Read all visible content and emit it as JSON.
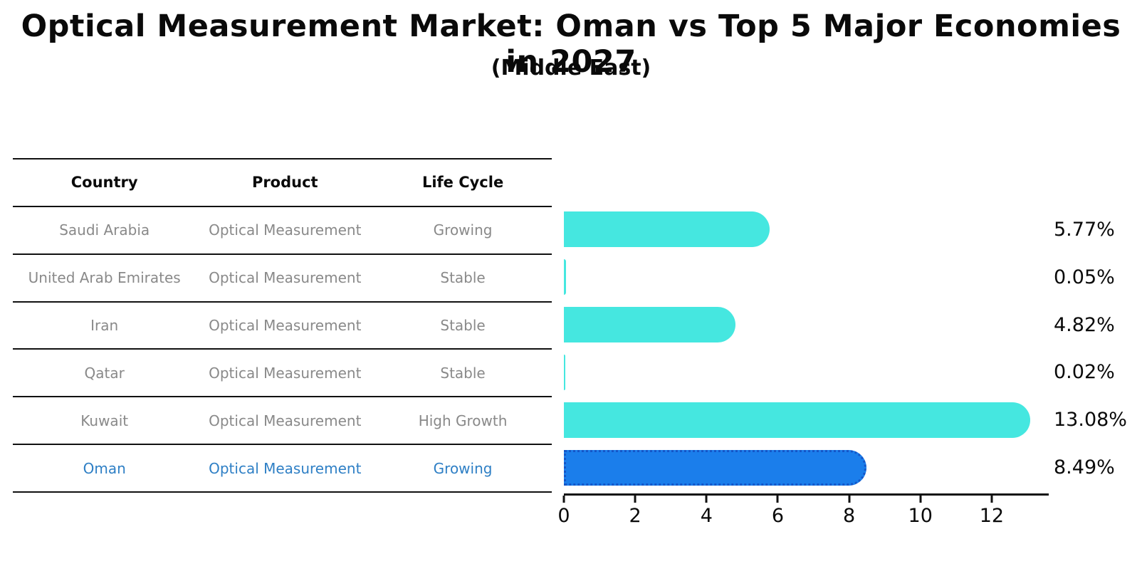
{
  "title": "Optical Measurement Market: Oman vs Top 5 Major Economies in 2027",
  "subtitle": "(Middle East)",
  "table": {
    "headers": [
      "Country",
      "Product",
      "Life Cycle"
    ],
    "rows": [
      {
        "country": "Saudi Arabia",
        "product": "Optical Measurement",
        "life_cycle": "Growing",
        "highlighted": false
      },
      {
        "country": "United Arab Emirates",
        "product": "Optical Measurement",
        "life_cycle": "Stable",
        "highlighted": false
      },
      {
        "country": "Iran",
        "product": "Optical Measurement",
        "life_cycle": "Stable",
        "highlighted": false
      },
      {
        "country": "Qatar",
        "product": "Optical Measurement",
        "life_cycle": "Stable",
        "highlighted": false
      },
      {
        "country": "Kuwait",
        "product": "Optical Measurement",
        "life_cycle": "High Growth",
        "highlighted": false
      },
      {
        "country": "Oman",
        "product": "Optical Measurement",
        "life_cycle": "Growing",
        "highlighted": true
      }
    ]
  },
  "chart_data": {
    "type": "bar",
    "orientation": "horizontal",
    "title": "Optical Measurement Market: Oman vs Top 5 Major Economies in 2027 (Middle East)",
    "categories": [
      "Saudi Arabia",
      "United Arab Emirates",
      "Iran",
      "Qatar",
      "Kuwait",
      "Oman"
    ],
    "values": [
      5.77,
      0.05,
      4.82,
      0.02,
      13.08,
      8.49
    ],
    "value_labels": [
      "5.77%",
      "0.05%",
      "4.82%",
      "0.02%",
      "13.08%",
      "8.49%"
    ],
    "xticks": [
      0,
      2,
      4,
      6,
      8,
      10,
      12
    ],
    "xlim": [
      0,
      13.6
    ],
    "xlabel": "",
    "ylabel": "",
    "grid": false,
    "legend": null,
    "highlight_index": 5
  },
  "colors": {
    "bar_default": "#45e7e0",
    "bar_highlight": "#1b7eeb",
    "bar_highlight_border": "#1456c8",
    "highlight_text": "#2e7fc5",
    "row_text": "#898989",
    "header_text": "#0a0a0a",
    "axis": "#111111",
    "background": "#ffffff"
  }
}
